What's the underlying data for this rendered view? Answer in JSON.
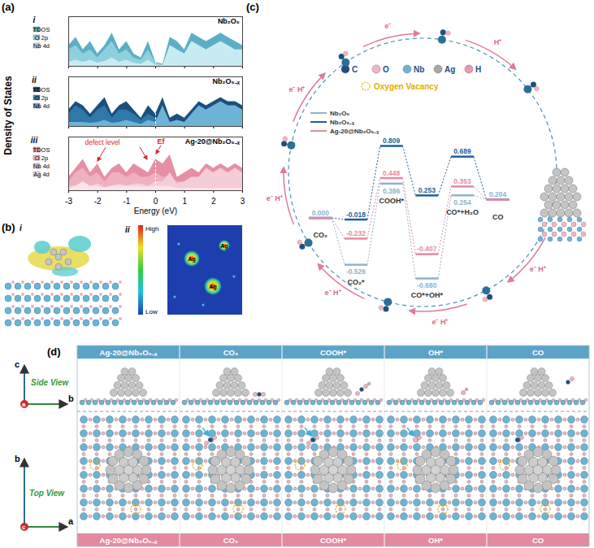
{
  "chart_data": [
    {
      "type": "area",
      "panel": "i",
      "title": "Nb₂O₅",
      "x": [
        -3,
        -2.75,
        -2.5,
        -2.25,
        -2,
        -1.75,
        -1.5,
        -1.25,
        -1,
        -0.75,
        -0.5,
        -0.25,
        0,
        0.25,
        0.5,
        0.75,
        1,
        1.25,
        1.5,
        1.75,
        2,
        2.25,
        2.5,
        2.75,
        3
      ],
      "series": [
        {
          "name": "TDOS",
          "color": "#5aafc6",
          "values": [
            5,
            7,
            4,
            6,
            3,
            5,
            8,
            4,
            6,
            3,
            2,
            6,
            1,
            0.5,
            7,
            6,
            4,
            8,
            7,
            6,
            7,
            8,
            7,
            6,
            5
          ]
        },
        {
          "name": "O 2p",
          "color": "#8ed0de",
          "values": [
            4,
            5,
            3,
            4,
            2,
            4,
            6,
            3,
            4,
            2,
            1.5,
            4,
            0.8,
            0.3,
            3,
            3,
            2,
            4,
            3,
            3,
            3,
            4,
            3,
            3,
            2
          ]
        },
        {
          "name": "Nb 4d",
          "color": "#c8ebf2",
          "values": [
            1,
            1.5,
            1,
            1.5,
            0.8,
            1.2,
            2,
            1,
            1.5,
            0.8,
            0.5,
            1.5,
            0.3,
            0.2,
            5,
            4,
            3,
            6,
            5,
            4,
            5,
            6,
            5,
            4,
            4
          ]
        }
      ],
      "xlim": [
        -3,
        3
      ],
      "xticks": [
        -3,
        -2,
        -1,
        0,
        1,
        2,
        3
      ],
      "ylim": [
        0,
        12
      ],
      "fermi_level": 0,
      "tick_labels": false
    },
    {
      "type": "area",
      "panel": "ii",
      "title": "Nb₂O₅₋ₓ",
      "x": [
        -3,
        -2.75,
        -2.5,
        -2.25,
        -2,
        -1.75,
        -1.5,
        -1.25,
        -1,
        -0.75,
        -0.5,
        -0.25,
        0,
        0.25,
        0.5,
        0.75,
        1,
        1.25,
        1.5,
        1.75,
        2,
        2.25,
        2.5,
        2.75,
        3
      ],
      "series": [
        {
          "name": "TDOS",
          "color": "#1c4f7c",
          "values": [
            4,
            6,
            5,
            3,
            5,
            7,
            3,
            5,
            6,
            4,
            2,
            5,
            3,
            7,
            2,
            3,
            2,
            4,
            6,
            5,
            6,
            7,
            6,
            6,
            5
          ]
        },
        {
          "name": "O 2p",
          "color": "#2e78aa",
          "values": [
            3,
            5,
            4,
            2,
            4,
            5,
            2,
            4,
            4,
            3,
            1.5,
            3,
            2,
            2,
            1,
            1.5,
            1,
            2,
            3,
            3,
            3,
            3,
            3,
            3,
            3
          ]
        },
        {
          "name": "Nb 4d",
          "color": "#6db3d6",
          "values": [
            1,
            1,
            1,
            0.8,
            1,
            1.5,
            0.8,
            1,
            1.5,
            1,
            0.5,
            1.5,
            1,
            5,
            1,
            1.5,
            1,
            3,
            5,
            4,
            5,
            6,
            5,
            5,
            4
          ]
        }
      ],
      "xlim": [
        -3,
        3
      ],
      "xticks": [
        -3,
        -2,
        -1,
        0,
        1,
        2,
        3
      ],
      "ylim": [
        0,
        12
      ],
      "fermi_level": 0,
      "tick_labels": false
    },
    {
      "type": "area",
      "panel": "iii",
      "title": "Ag-20@Nb₂O₅₋ₓ",
      "xlabel": "Energy (eV)",
      "x": [
        -3,
        -2.75,
        -2.5,
        -2.25,
        -2,
        -1.75,
        -1.5,
        -1.25,
        -1,
        -0.75,
        -0.5,
        -0.25,
        0,
        0.25,
        0.5,
        0.75,
        1,
        1.25,
        1.5,
        1.75,
        2,
        2.25,
        2.5,
        2.75,
        3
      ],
      "series": [
        {
          "name": "TDOS",
          "color": "#e58fa5",
          "values": [
            3,
            5,
            7,
            4,
            6,
            3,
            5,
            6,
            4,
            6,
            5,
            4,
            7,
            6,
            8,
            3,
            4,
            5,
            4,
            6,
            5,
            6,
            5,
            6,
            5
          ]
        },
        {
          "name": "O 2p",
          "color": "#efb0c0",
          "values": [
            2,
            4,
            5,
            3,
            4,
            2,
            4,
            4,
            3,
            4,
            3,
            3,
            4,
            3,
            3,
            2,
            2,
            2,
            2,
            3,
            3,
            3,
            3,
            3,
            3
          ]
        },
        {
          "name": "Nb 4d",
          "color": "#f5cdd7",
          "values": [
            1,
            1,
            1.5,
            1,
            1.5,
            0.8,
            1,
            1.5,
            1,
            1.5,
            1.5,
            1,
            2,
            2,
            4,
            1.5,
            2,
            3,
            3,
            5,
            4,
            5,
            4,
            5,
            4
          ]
        },
        {
          "name": "Ag 4d",
          "color": "#fae3e9",
          "values": [
            0.5,
            1,
            2,
            1,
            1,
            0.5,
            1,
            1,
            1,
            1,
            1,
            0.8,
            1,
            1,
            1,
            0.5,
            0.5,
            0.5,
            0.5,
            0.5,
            0.5,
            0.5,
            0.5,
            0.5,
            0.5
          ]
        }
      ],
      "xlim": [
        -3,
        3
      ],
      "xticks": [
        -3,
        -2,
        -1,
        0,
        1,
        2,
        3
      ],
      "ylim": [
        0,
        12
      ],
      "fermi_level": 0,
      "tick_labels": "x",
      "annotations": [
        "defect level",
        "Ef"
      ]
    },
    {
      "type": "energy_profile",
      "categories": [
        "CO₂",
        "CO₂*",
        "COOH*",
        "CO*+OH*",
        "CO*+H₂O",
        "CO"
      ],
      "series": [
        {
          "name": "Nb₂O₅",
          "color": "#8fb3cc",
          "values": [
            0,
            -0.526,
            0.386,
            -0.68,
            0.254,
            0.204
          ],
          "value_labels": [
            "0.000",
            "-0.526",
            "0.386",
            "-0.680",
            "0.254",
            "0.204"
          ]
        },
        {
          "name": "Nb₂O₅₋ₓ",
          "color": "#1f5f9b",
          "values": [
            0,
            -0.018,
            0.809,
            0.253,
            0.689,
            0.204
          ],
          "value_labels": [
            "0.000",
            "-0.018",
            "0.809",
            "0.253",
            "0.689",
            "0.204"
          ]
        },
        {
          "name": "Ag-20@Nb₂O₅₋ₓ",
          "color": "#e48aa3",
          "values": [
            0,
            -0.232,
            0.448,
            -0.407,
            0.353,
            0.204
          ],
          "value_labels": [
            "0.000",
            "-0.232",
            "0.448",
            "-0.407",
            "0.353",
            "0.204"
          ]
        }
      ],
      "data_labels": true,
      "tick_labels": false
    }
  ],
  "figure": {
    "panel_labels": [
      "(a)",
      "(b)",
      "(c)",
      "(d)"
    ],
    "ylabel": "Density of States",
    "b": {
      "roman": [
        "i",
        "ii"
      ],
      "colorbar": [
        "High",
        "Low"
      ],
      "spot_labels": [
        "Ag",
        "Ag",
        "Ag"
      ]
    },
    "c": {
      "atom_legend": [
        "C",
        "O",
        "Nb",
        "Ag",
        "H"
      ],
      "vacancy_legend": "Oxygen Vacancy",
      "cycle_labels": [
        "e⁻ H⁺",
        "e⁻ H⁺",
        "e⁻ H⁺",
        "e⁻ H⁺",
        "e⁻ H⁺",
        "e⁻",
        "H⁺"
      ]
    },
    "d": {
      "columns": [
        "Ag-20@Nb₂O₅₋ₓ",
        "CO₂",
        "COOH*",
        "OH*",
        "CO"
      ],
      "rows": [
        "Side View",
        "Top View"
      ],
      "side_axes": {
        "up": "c",
        "origin": "a",
        "right": "b"
      },
      "top_axes": {
        "up": "b",
        "origin": "c",
        "right": "a"
      }
    }
  }
}
